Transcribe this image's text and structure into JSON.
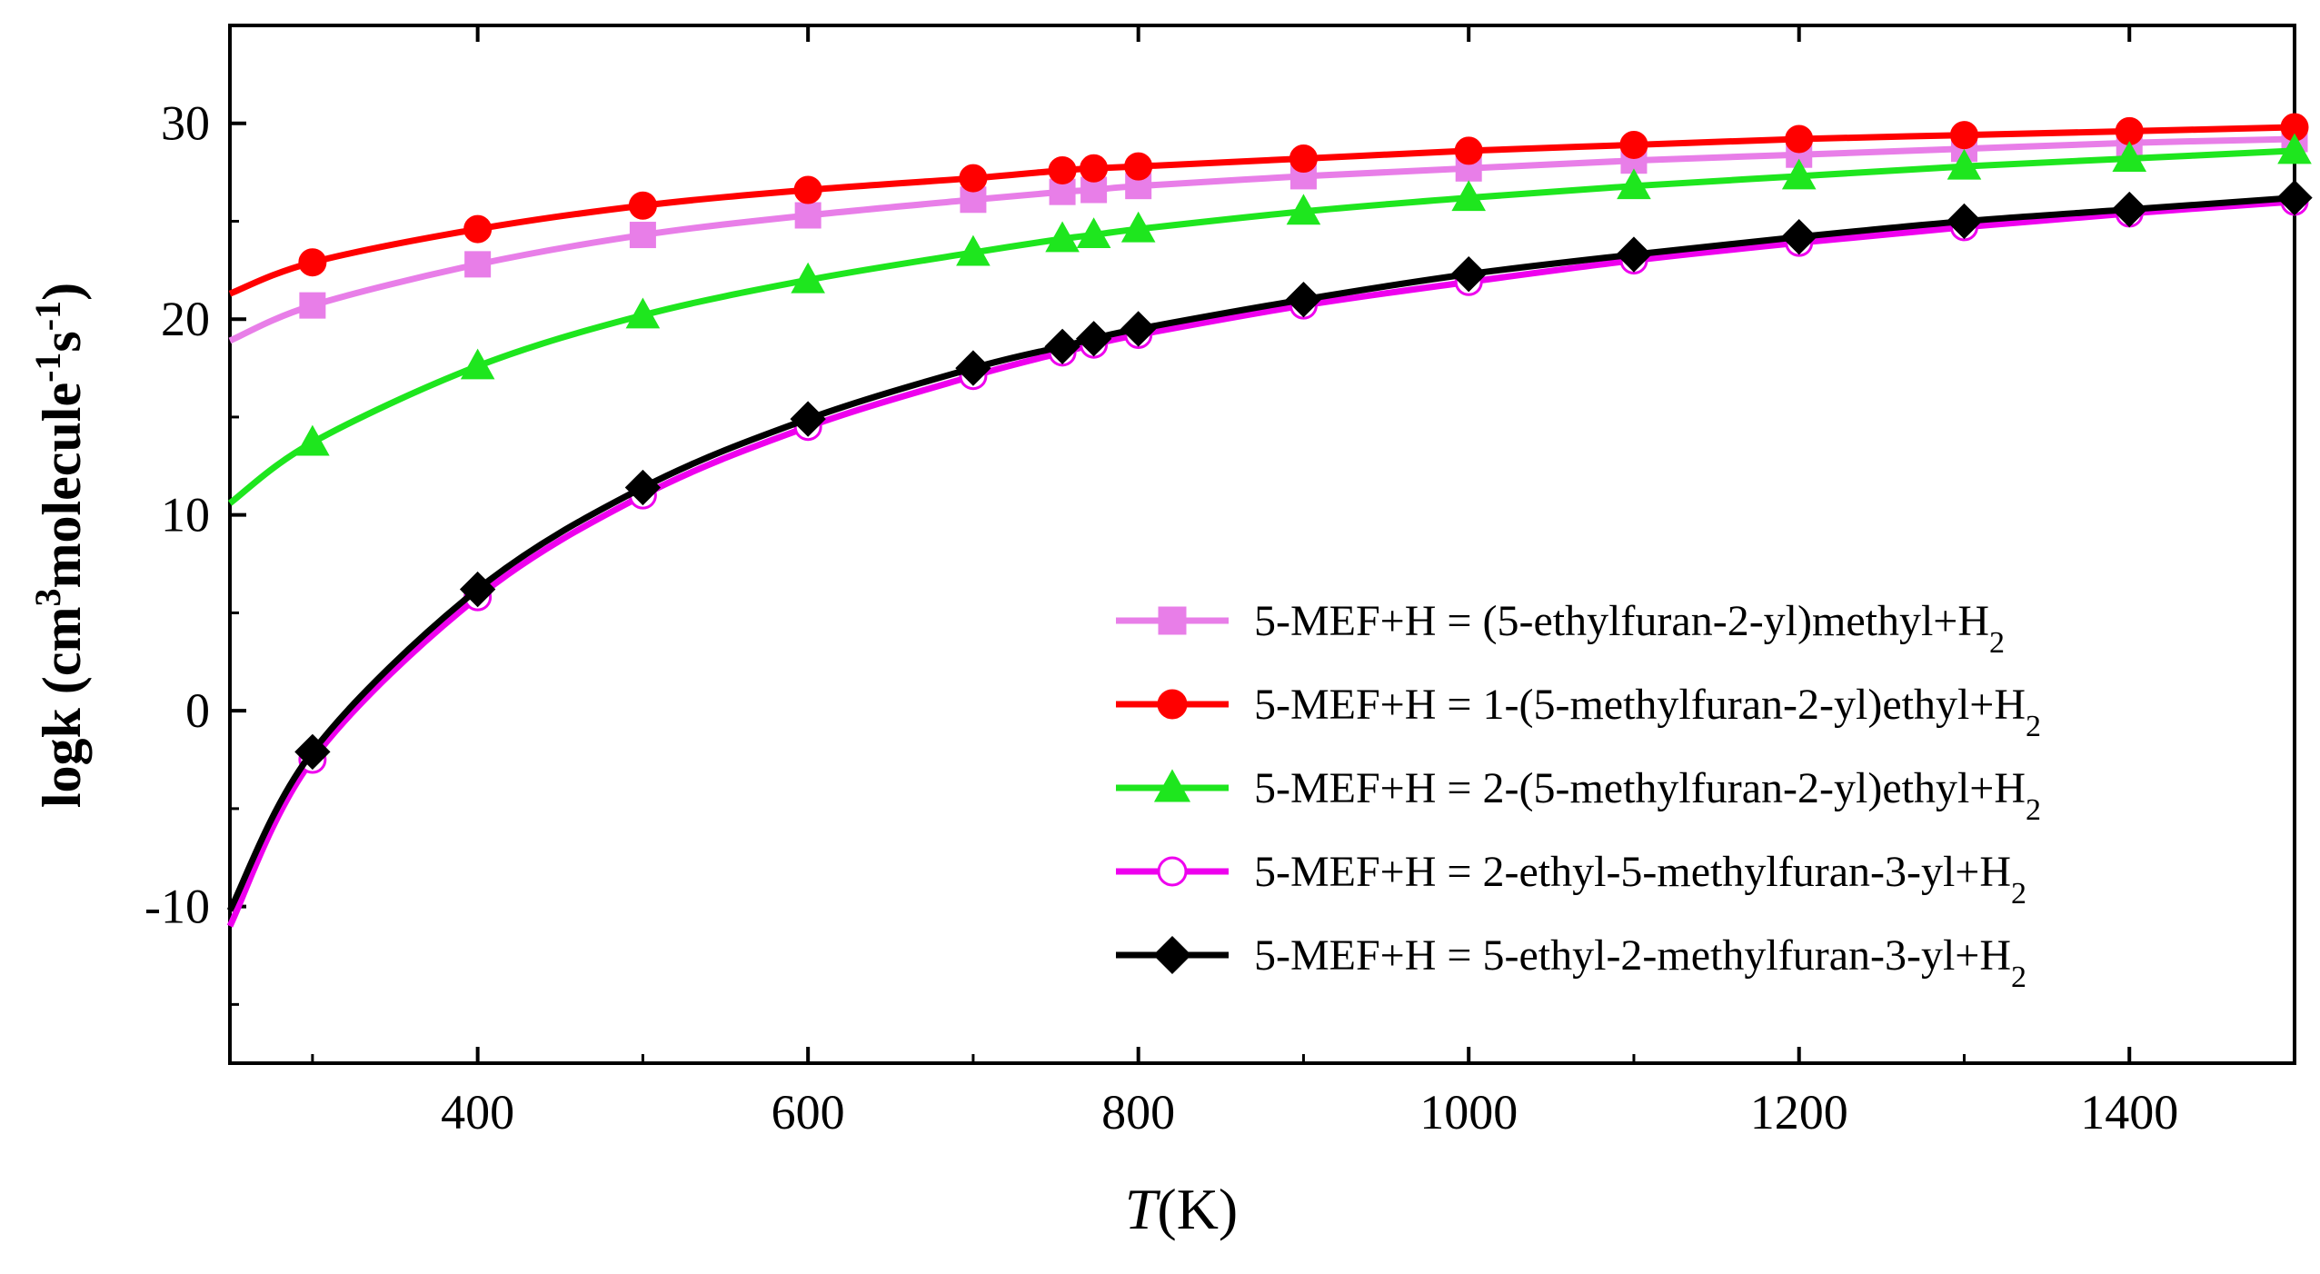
{
  "chart_data": {
    "type": "line",
    "title": "",
    "xlabel": {
      "main": "T",
      "unit": "(K)"
    },
    "ylabel": {
      "parts": [
        {
          "t": "logk (cm",
          "sup": false
        },
        {
          "t": "3",
          "sup": true
        },
        {
          "t": "molecule",
          "sup": false
        },
        {
          "t": "-1",
          "sup": true
        },
        {
          "t": "s",
          "sup": false
        },
        {
          "t": "-1",
          "sup": true
        },
        {
          "t": ")",
          "sup": false
        }
      ]
    },
    "xlim": [
      250,
      1500
    ],
    "ylim": [
      -18,
      35
    ],
    "xticks": [
      400,
      600,
      800,
      1000,
      1200,
      1400
    ],
    "xtick_labels": [
      "400",
      "600",
      "800",
      "1000",
      "1200",
      "1400"
    ],
    "yticks": [
      -10,
      0,
      10,
      20,
      30
    ],
    "ytick_labels": [
      "-10",
      "0",
      "10",
      "20",
      "30"
    ],
    "grid": false,
    "legend_position": "right",
    "series": [
      {
        "id": "s1",
        "name": "5-MEF+H = (5-ethylfuran-2-yl)methyl+H",
        "name_sub": "2",
        "color": "#e87ee8",
        "marker": "square",
        "filled": true,
        "x": [
          250,
          300,
          400,
          500,
          600,
          700,
          754,
          773,
          800,
          900,
          1000,
          1100,
          1200,
          1300,
          1400,
          1500
        ],
        "y": [
          18.9,
          20.7,
          22.8,
          24.3,
          25.3,
          26.1,
          26.5,
          26.6,
          26.8,
          27.3,
          27.7,
          28.1,
          28.4,
          28.7,
          29.0,
          29.2
        ]
      },
      {
        "id": "s2",
        "name": "5-MEF+H = 1-(5-methylfuran-2-yl)ethyl+H",
        "name_sub": "2",
        "color": "#ff0000",
        "marker": "circle",
        "filled": true,
        "x": [
          250,
          300,
          400,
          500,
          600,
          700,
          754,
          773,
          800,
          900,
          1000,
          1100,
          1200,
          1300,
          1400,
          1500
        ],
        "y": [
          21.3,
          22.9,
          24.6,
          25.8,
          26.6,
          27.2,
          27.6,
          27.7,
          27.8,
          28.2,
          28.6,
          28.9,
          29.2,
          29.4,
          29.6,
          29.8
        ]
      },
      {
        "id": "s3",
        "name": "5-MEF+H = 2-(5-methylfuran-2-yl)ethyl+H",
        "name_sub": "2",
        "color": "#1ee61e",
        "marker": "triangle",
        "filled": true,
        "x": [
          250,
          300,
          400,
          500,
          600,
          700,
          754,
          773,
          800,
          900,
          1000,
          1100,
          1200,
          1300,
          1400,
          1500
        ],
        "y": [
          10.6,
          13.7,
          17.6,
          20.2,
          22.0,
          23.4,
          24.1,
          24.3,
          24.6,
          25.5,
          26.2,
          26.8,
          27.3,
          27.8,
          28.2,
          28.6
        ]
      },
      {
        "id": "s4",
        "name": "5-MEF+H = 2-ethyl-5-methylfuran-3-yl+H",
        "name_sub": "2",
        "color": "#ee00ee",
        "marker": "circle",
        "filled": false,
        "x": [
          250,
          300,
          400,
          500,
          600,
          700,
          754,
          773,
          800,
          900,
          1000,
          1100,
          1200,
          1300,
          1400,
          1500
        ],
        "y": [
          -11.0,
          -2.5,
          5.8,
          11.0,
          14.5,
          17.1,
          18.3,
          18.7,
          19.2,
          20.7,
          21.9,
          23.0,
          23.9,
          24.7,
          25.4,
          26.0
        ]
      },
      {
        "id": "s5",
        "name": "5-MEF+H = 5-ethyl-2-methylfuran-3-yl+H",
        "name_sub": "2",
        "color": "#000000",
        "marker": "diamond",
        "filled": true,
        "x": [
          250,
          300,
          400,
          500,
          600,
          700,
          754,
          773,
          800,
          900,
          1000,
          1100,
          1200,
          1300,
          1400,
          1500
        ],
        "y": [
          -10.2,
          -2.1,
          6.2,
          11.4,
          14.9,
          17.5,
          18.6,
          19.0,
          19.5,
          21.0,
          22.3,
          23.3,
          24.2,
          25.0,
          25.6,
          26.2
        ]
      }
    ]
  }
}
